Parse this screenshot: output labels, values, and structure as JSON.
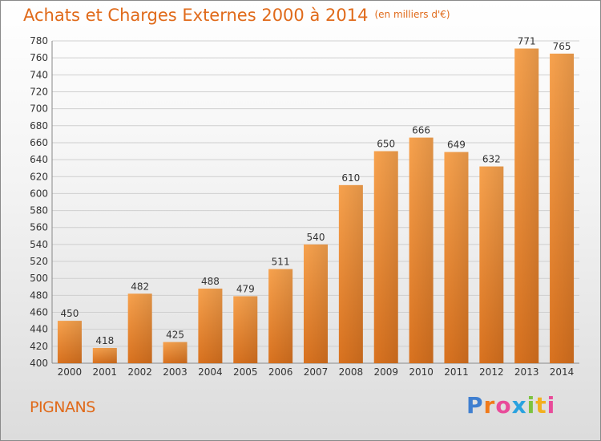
{
  "chart_data": {
    "type": "bar",
    "title": "Achats et Charges Externes 2000 à 2014",
    "subtitle": "(en milliers d'€)",
    "categories": [
      "2000",
      "2001",
      "2002",
      "2003",
      "2004",
      "2005",
      "2006",
      "2007",
      "2008",
      "2009",
      "2010",
      "2011",
      "2012",
      "2013",
      "2014"
    ],
    "values": [
      450,
      418,
      482,
      425,
      488,
      479,
      511,
      540,
      610,
      650,
      666,
      649,
      632,
      771,
      765
    ],
    "ylim": [
      400,
      780
    ],
    "ytick_step": 20,
    "grid": true,
    "bar_color": "#f08b32"
  },
  "footer": {
    "commune": "PIGNANS",
    "logo_letters": [
      "P",
      "r",
      "o",
      "x",
      "i",
      "t",
      "i"
    ],
    "logo_colors": [
      "#3f7fd0",
      "#f07a1a",
      "#e94b9a",
      "#2aa2df",
      "#7cc33f",
      "#f2b01e",
      "#e94b9a"
    ]
  }
}
